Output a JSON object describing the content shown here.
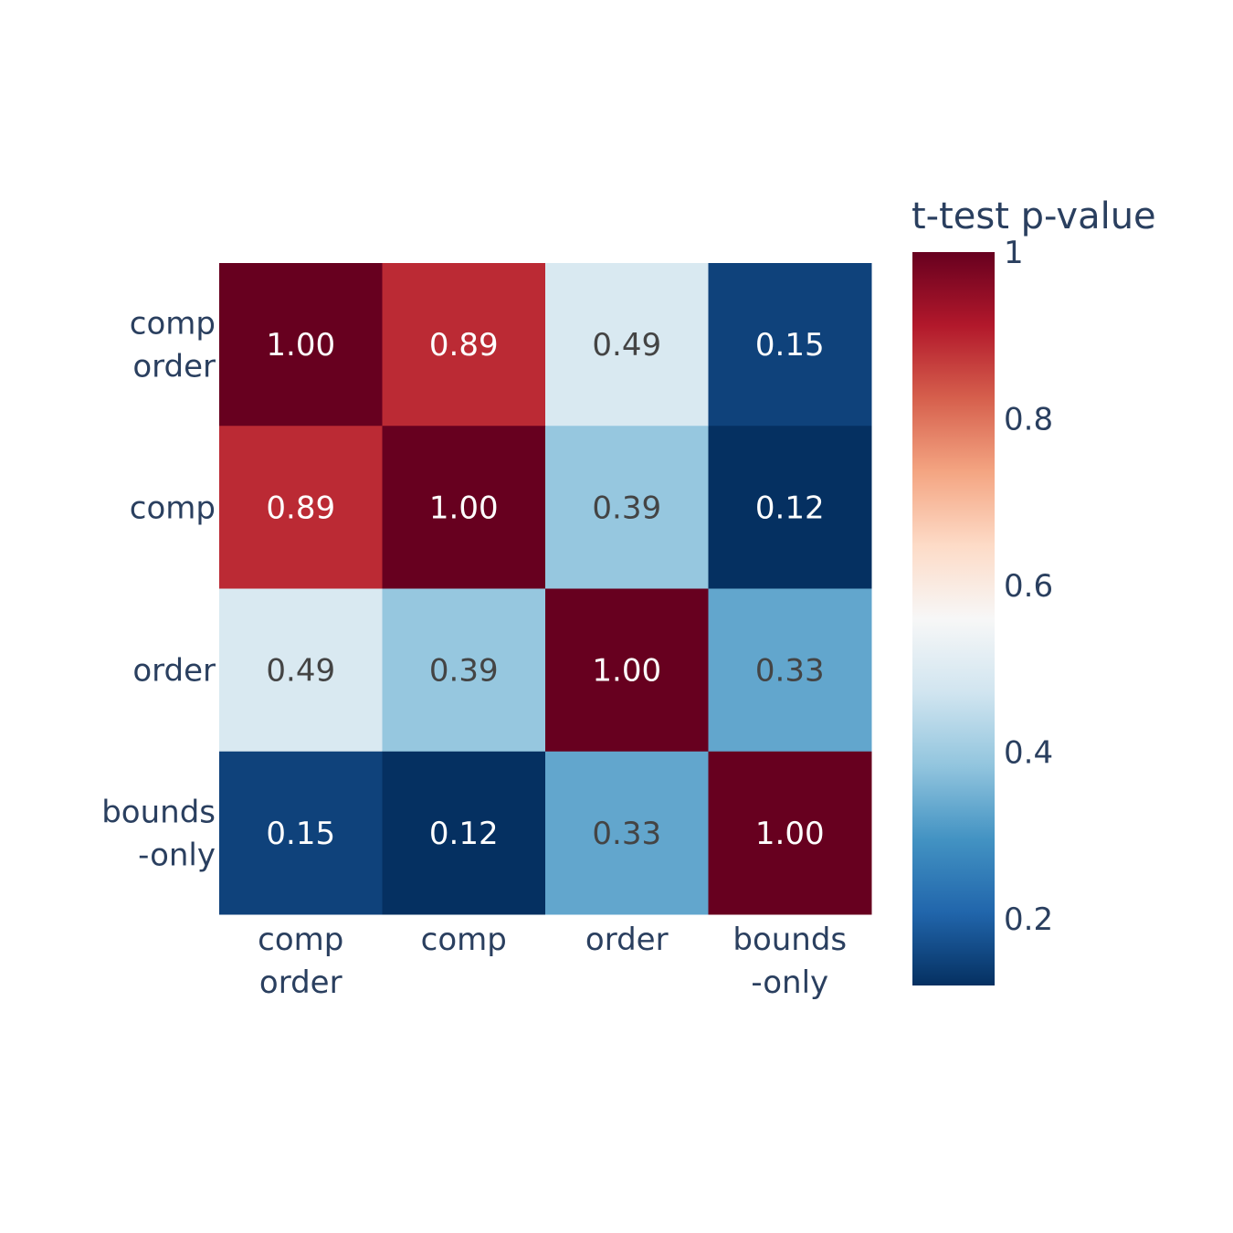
{
  "chart_data": {
    "type": "heatmap",
    "x_categories": [
      [
        "comp",
        "order"
      ],
      [
        "comp"
      ],
      [
        "order"
      ],
      [
        "bounds",
        "-only"
      ]
    ],
    "y_categories": [
      [
        "comp",
        "order"
      ],
      [
        "comp"
      ],
      [
        "order"
      ],
      [
        "bounds",
        "-only"
      ]
    ],
    "z": [
      [
        1.0,
        0.89,
        0.49,
        0.15
      ],
      [
        0.89,
        1.0,
        0.39,
        0.12
      ],
      [
        0.49,
        0.39,
        1.0,
        0.33
      ],
      [
        0.15,
        0.12,
        0.33,
        1.0
      ]
    ],
    "cell_labels": [
      [
        "1.00",
        "0.89",
        "0.49",
        "0.15"
      ],
      [
        "0.89",
        "1.00",
        "0.39",
        "0.12"
      ],
      [
        "0.49",
        "0.39",
        "1.00",
        "0.33"
      ],
      [
        "0.15",
        "0.12",
        "0.33",
        "1.00"
      ]
    ],
    "colorbar": {
      "title": "t-test p-value",
      "range": [
        0.12,
        1.0
      ],
      "ticks": [
        0.2,
        0.4,
        0.6,
        0.8,
        1
      ],
      "tick_labels": [
        "0.2",
        "0.4",
        "0.6",
        "0.8",
        "1"
      ],
      "colorscale": [
        "#053061",
        "#2166ac",
        "#4393c3",
        "#92c5de",
        "#d1e5f0",
        "#f7f7f7",
        "#fddbc7",
        "#f4a582",
        "#d6604d",
        "#b2182b",
        "#67001f"
      ]
    }
  }
}
